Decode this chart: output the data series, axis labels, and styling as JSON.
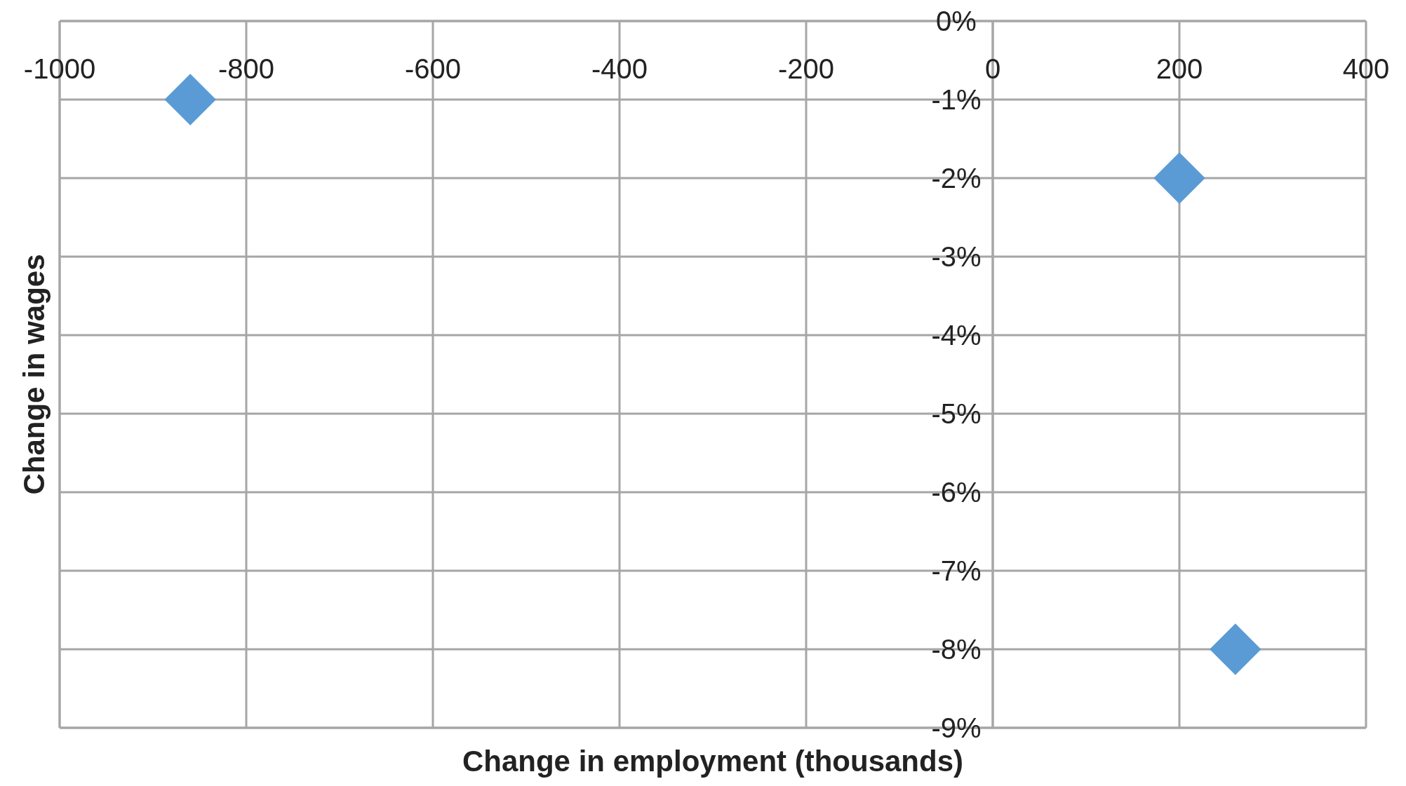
{
  "chart_data": {
    "type": "scatter",
    "xlabel": "Change in employment (thousands)",
    "ylabel": "Change in wages",
    "x": [
      -860,
      200,
      260
    ],
    "values": [
      -1,
      -2,
      -8
    ],
    "color": "#5b9bd5",
    "marker": "diamond",
    "xlim": [
      -1000,
      400
    ],
    "xticks": [
      -1000,
      -800,
      -600,
      -400,
      -200,
      0,
      200,
      400
    ],
    "ylim": [
      -9,
      0
    ],
    "yticks": [
      {
        "value": 0,
        "label": "0%"
      },
      {
        "value": -1,
        "label": "-1%"
      },
      {
        "value": -2,
        "label": "-2%"
      },
      {
        "value": -3,
        "label": "-3%"
      },
      {
        "value": -4,
        "label": "-4%"
      },
      {
        "value": -5,
        "label": "-5%"
      },
      {
        "value": -6,
        "label": "-6%"
      },
      {
        "value": -7,
        "label": "-7%"
      },
      {
        "value": -8,
        "label": "-8%"
      },
      {
        "value": -9,
        "label": "-9%"
      }
    ],
    "grid": true
  }
}
